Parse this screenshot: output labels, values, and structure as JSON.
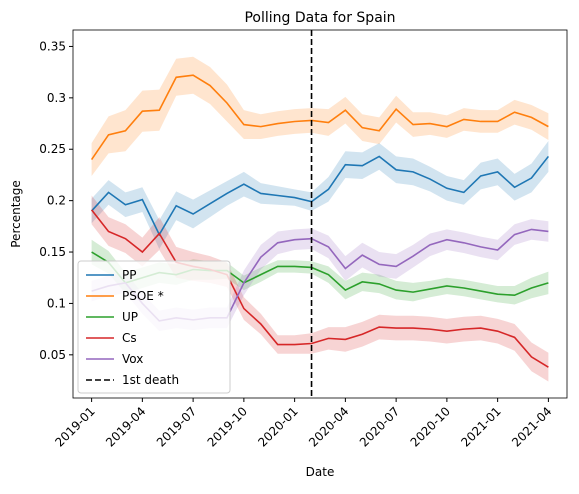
{
  "chart_data": {
    "type": "line",
    "title": "Polling Data for Spain",
    "xlabel": "Date",
    "ylabel": "Percentage",
    "x": [
      "2019-01",
      "2019-02",
      "2019-03",
      "2019-04",
      "2019-05",
      "2019-06",
      "2019-07",
      "2019-08",
      "2019-09",
      "2019-10",
      "2019-11",
      "2019-12",
      "2020-01",
      "2020-02",
      "2020-03",
      "2020-04",
      "2020-05",
      "2020-06",
      "2020-07",
      "2020-08",
      "2020-09",
      "2020-10",
      "2020-11",
      "2020-12",
      "2021-01",
      "2021-02",
      "2021-03",
      "2021-04"
    ],
    "series": [
      {
        "name": "PP",
        "color": "#1f77b4",
        "values": [
          0.19,
          0.208,
          0.196,
          0.201,
          0.167,
          0.195,
          0.187,
          0.197,
          0.207,
          0.216,
          0.207,
          0.205,
          0.203,
          0.199,
          0.211,
          0.235,
          0.234,
          0.243,
          0.23,
          0.228,
          0.221,
          0.212,
          0.208,
          0.224,
          0.228,
          0.213,
          0.222,
          0.243
        ],
        "error": [
          0.012,
          0.012,
          0.012,
          0.012,
          0.014,
          0.014,
          0.014,
          0.013,
          0.012,
          0.012,
          0.01,
          0.009,
          0.008,
          0.009,
          0.012,
          0.013,
          0.013,
          0.013,
          0.013,
          0.013,
          0.012,
          0.012,
          0.012,
          0.013,
          0.013,
          0.013,
          0.014,
          0.015
        ]
      },
      {
        "name": "PSOE *",
        "color": "#ff7f0e",
        "values": [
          0.24,
          0.264,
          0.268,
          0.287,
          0.288,
          0.32,
          0.322,
          0.312,
          0.295,
          0.274,
          0.272,
          0.275,
          0.277,
          0.278,
          0.276,
          0.288,
          0.271,
          0.268,
          0.289,
          0.274,
          0.275,
          0.272,
          0.279,
          0.277,
          0.277,
          0.286,
          0.281,
          0.272
        ],
        "error": [
          0.016,
          0.018,
          0.02,
          0.02,
          0.02,
          0.018,
          0.018,
          0.018,
          0.018,
          0.014,
          0.012,
          0.012,
          0.012,
          0.012,
          0.013,
          0.013,
          0.013,
          0.013,
          0.013,
          0.012,
          0.011,
          0.011,
          0.011,
          0.011,
          0.011,
          0.012,
          0.012,
          0.013
        ]
      },
      {
        "name": "UP",
        "color": "#2ca02c",
        "values": [
          0.15,
          0.14,
          0.12,
          0.125,
          0.13,
          0.128,
          0.133,
          0.132,
          0.132,
          0.12,
          0.128,
          0.136,
          0.136,
          0.135,
          0.128,
          0.113,
          0.121,
          0.119,
          0.113,
          0.111,
          0.114,
          0.117,
          0.115,
          0.112,
          0.109,
          0.108,
          0.115,
          0.12
        ],
        "error": [
          0.012,
          0.011,
          0.01,
          0.01,
          0.01,
          0.01,
          0.01,
          0.009,
          0.008,
          0.007,
          0.007,
          0.006,
          0.006,
          0.006,
          0.008,
          0.009,
          0.009,
          0.009,
          0.009,
          0.009,
          0.008,
          0.008,
          0.008,
          0.008,
          0.008,
          0.009,
          0.01,
          0.011
        ]
      },
      {
        "name": "Cs",
        "color": "#d62728",
        "values": [
          0.191,
          0.17,
          0.163,
          0.15,
          0.168,
          0.14,
          0.136,
          0.133,
          0.128,
          0.095,
          0.08,
          0.06,
          0.06,
          0.061,
          0.066,
          0.065,
          0.07,
          0.077,
          0.076,
          0.076,
          0.075,
          0.073,
          0.075,
          0.076,
          0.073,
          0.067,
          0.048,
          0.038
        ],
        "error": [
          0.014,
          0.014,
          0.014,
          0.014,
          0.016,
          0.015,
          0.014,
          0.013,
          0.012,
          0.011,
          0.01,
          0.009,
          0.009,
          0.01,
          0.011,
          0.012,
          0.012,
          0.012,
          0.012,
          0.012,
          0.012,
          0.012,
          0.012,
          0.012,
          0.012,
          0.013,
          0.014,
          0.014
        ]
      },
      {
        "name": "Vox",
        "color": "#9467bd",
        "values": [
          0.112,
          0.117,
          0.12,
          0.1,
          0.083,
          0.086,
          0.084,
          0.086,
          0.086,
          0.12,
          0.145,
          0.159,
          0.162,
          0.163,
          0.155,
          0.134,
          0.147,
          0.138,
          0.136,
          0.146,
          0.157,
          0.162,
          0.159,
          0.155,
          0.152,
          0.167,
          0.172,
          0.17
        ],
        "error": [
          0.01,
          0.01,
          0.01,
          0.01,
          0.01,
          0.01,
          0.01,
          0.01,
          0.01,
          0.012,
          0.012,
          0.011,
          0.01,
          0.01,
          0.011,
          0.012,
          0.012,
          0.012,
          0.012,
          0.011,
          0.011,
          0.01,
          0.01,
          0.01,
          0.01,
          0.01,
          0.01,
          0.01
        ]
      }
    ],
    "vline": {
      "name": "1st death",
      "x": "2020-02",
      "color": "#000000"
    },
    "xticks": [
      "2019-01",
      "2019-04",
      "2019-07",
      "2019-10",
      "2020-01",
      "2020-04",
      "2020-07",
      "2020-10",
      "2021-01",
      "2021-04"
    ],
    "ylim": [
      0.008,
      0.366
    ],
    "yticks": [
      0.05,
      0.1,
      0.15,
      0.2,
      0.25,
      0.3,
      0.35
    ],
    "legend": "lower left"
  }
}
